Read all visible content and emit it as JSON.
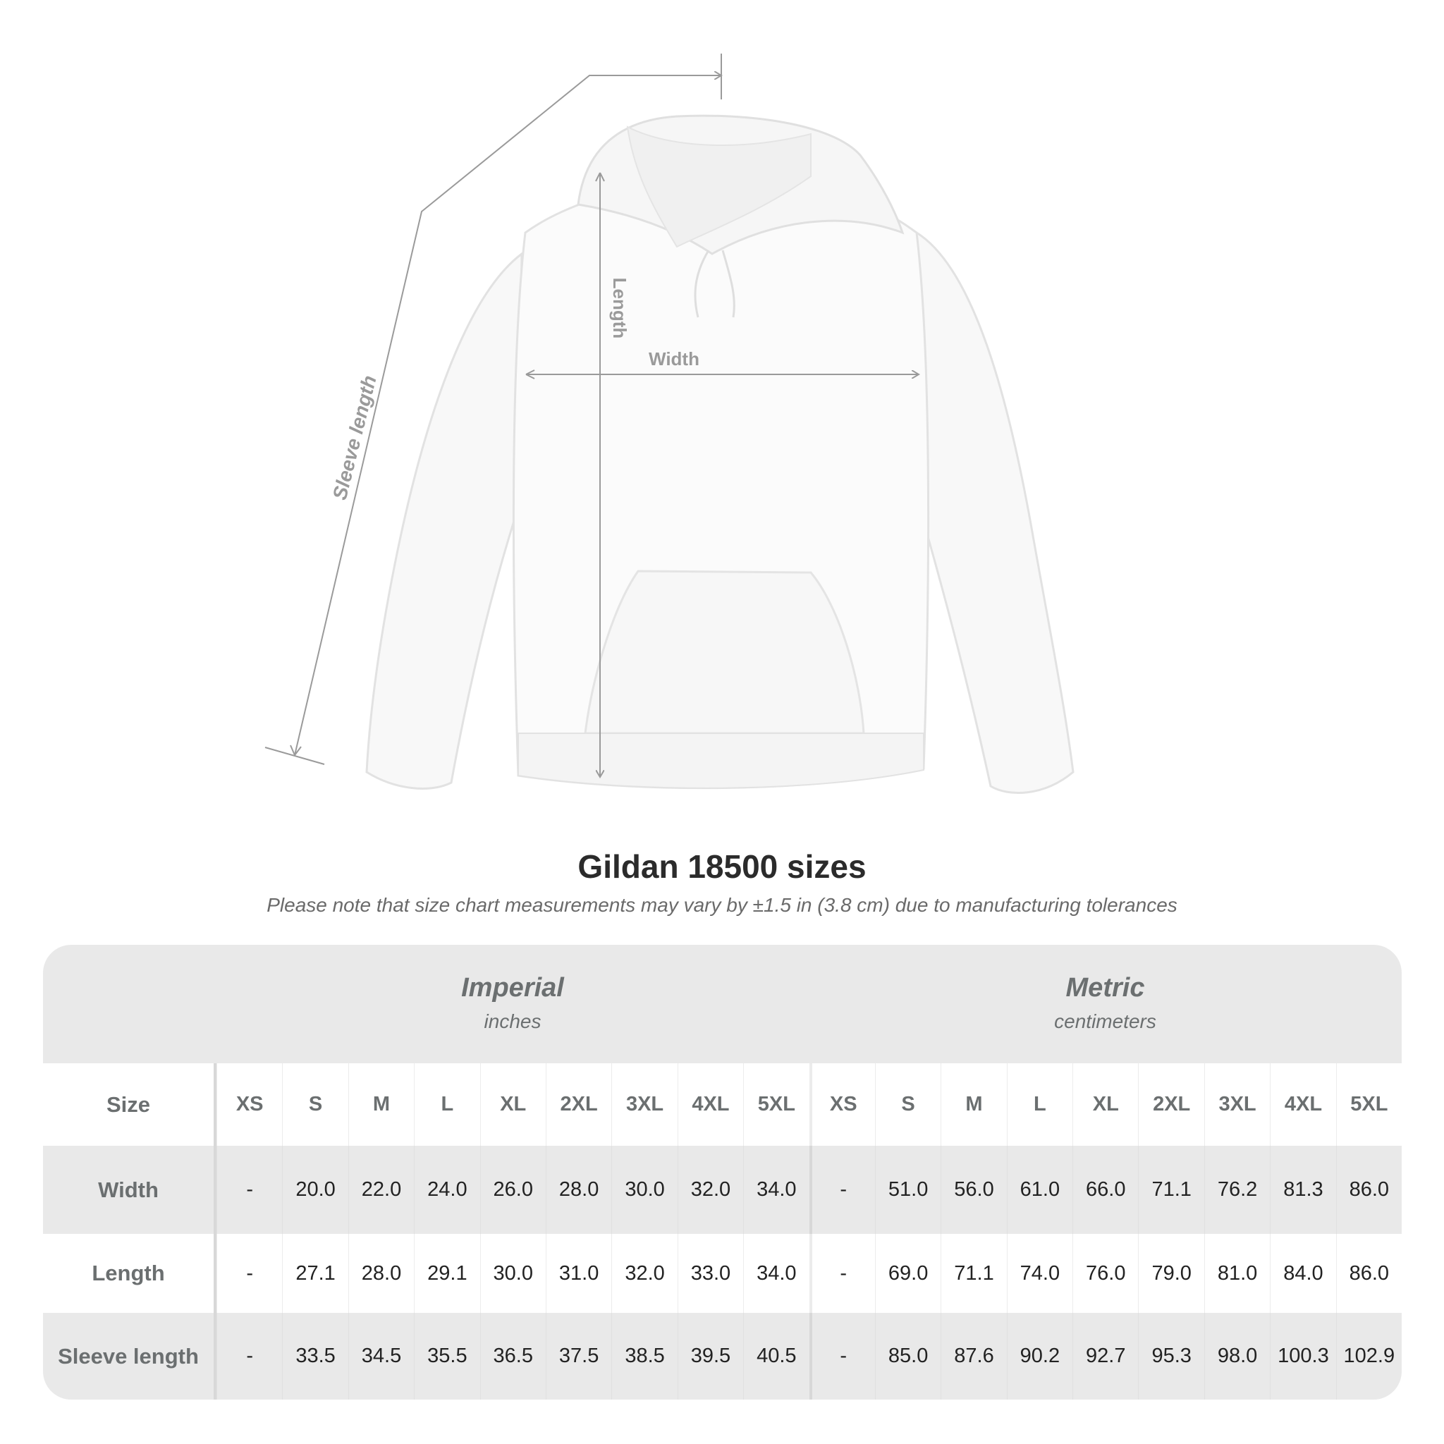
{
  "figure": {
    "labels": {
      "length": "Length",
      "width": "Width",
      "sleeve": "Sleeve length"
    }
  },
  "title": "Gildan 18500 sizes",
  "subtitle": "Please note that size chart measurements may vary by ±1.5 in (3.8 cm) due to manufacturing tolerances",
  "table": {
    "imperial": {
      "system": "Imperial",
      "unit": "inches"
    },
    "metric": {
      "system": "Metric",
      "unit": "centimeters"
    },
    "size_label": "Size",
    "sizes": [
      "XS",
      "S",
      "M",
      "L",
      "XL",
      "2XL",
      "3XL",
      "4XL",
      "5XL"
    ],
    "rows": [
      {
        "label": "Width",
        "imperial": [
          "-",
          "20.0",
          "22.0",
          "24.0",
          "26.0",
          "28.0",
          "30.0",
          "32.0",
          "34.0"
        ],
        "metric": [
          "-",
          "51.0",
          "56.0",
          "61.0",
          "66.0",
          "71.1",
          "76.2",
          "81.3",
          "86.0"
        ]
      },
      {
        "label": "Length",
        "imperial": [
          "-",
          "27.1",
          "28.0",
          "29.1",
          "30.0",
          "31.0",
          "32.0",
          "33.0",
          "34.0"
        ],
        "metric": [
          "-",
          "69.0",
          "71.1",
          "74.0",
          "76.0",
          "79.0",
          "81.0",
          "84.0",
          "86.0"
        ]
      },
      {
        "label": "Sleeve length",
        "imperial": [
          "-",
          "33.5",
          "34.5",
          "35.5",
          "36.5",
          "37.5",
          "38.5",
          "39.5",
          "40.5"
        ],
        "metric": [
          "-",
          "85.0",
          "87.6",
          "90.2",
          "92.7",
          "95.3",
          "98.0",
          "100.3",
          "102.9"
        ]
      }
    ]
  },
  "colors": {
    "header_text": "#6b6f70",
    "band": "#e9e9e9",
    "measure_line": "#9a9a9a"
  }
}
